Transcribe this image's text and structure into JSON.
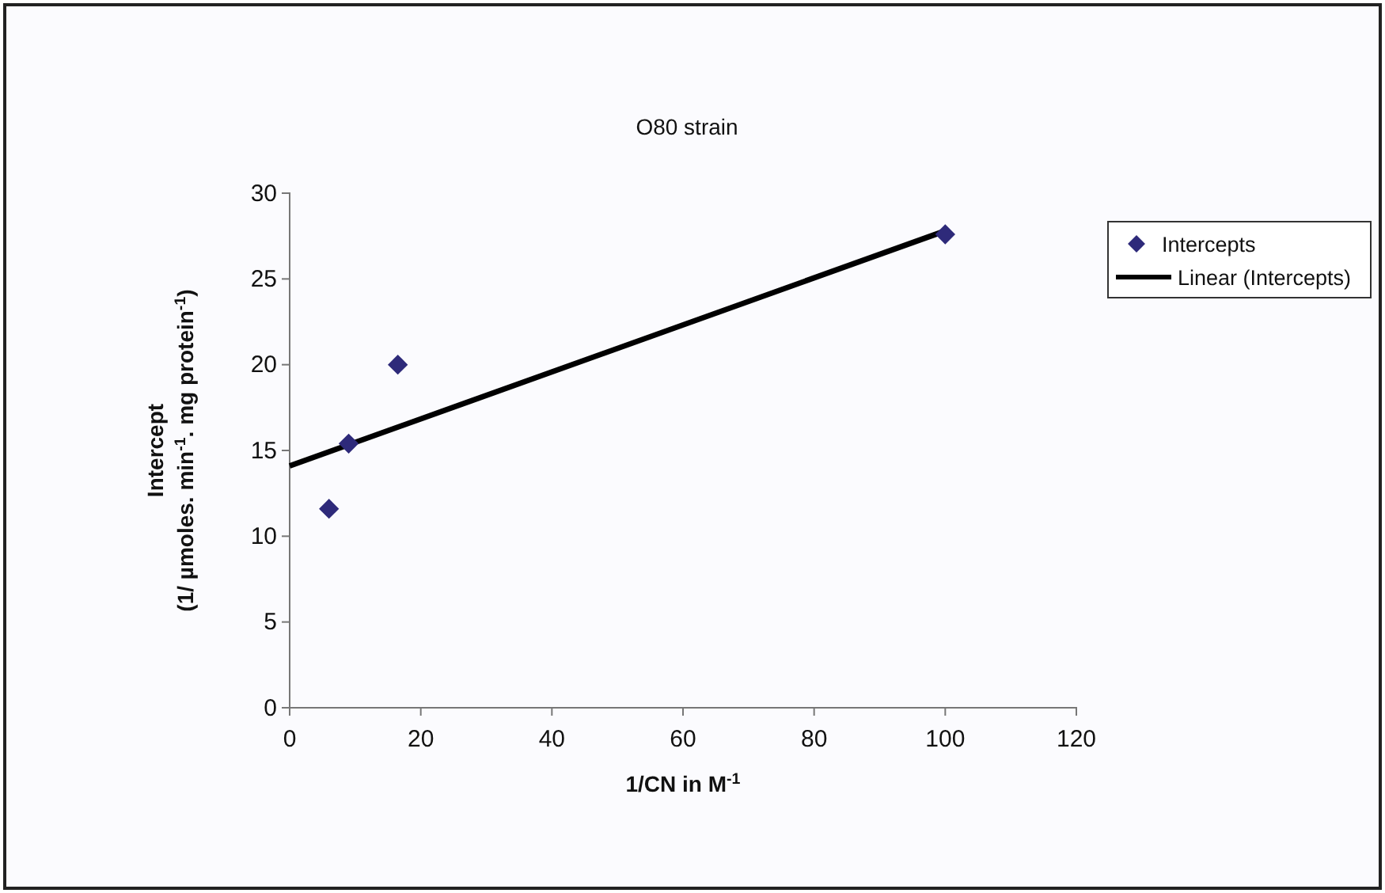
{
  "chart_data": {
    "type": "scatter",
    "title": "O80 strain",
    "xlabel": "1/CN in M$^{-1}$",
    "ylabel": "Intercept\n(1/ µmoles. min$^{-1}$. mg protein$^{-1}$)",
    "xlim": [
      0,
      120
    ],
    "xticks": [
      0,
      20,
      40,
      60,
      80,
      100,
      120
    ],
    "ylim": [
      0,
      30
    ],
    "yticks": [
      0,
      5,
      10,
      15,
      20,
      25,
      30
    ],
    "grid": false,
    "legend": "right",
    "series": [
      {
        "name": "Intercepts",
        "marker": "diamond",
        "color": "#2e2a7a",
        "x": [
          6,
          9,
          16.5,
          100
        ],
        "values": [
          11.6,
          15.4,
          20,
          27.6
        ]
      },
      {
        "name": "Linear (Intercepts)",
        "type": "line",
        "color": "#000000",
        "line_style": "solid",
        "marker": "none",
        "x": [
          0,
          100
        ],
        "values": [
          14.1,
          27.8
        ]
      }
    ]
  }
}
